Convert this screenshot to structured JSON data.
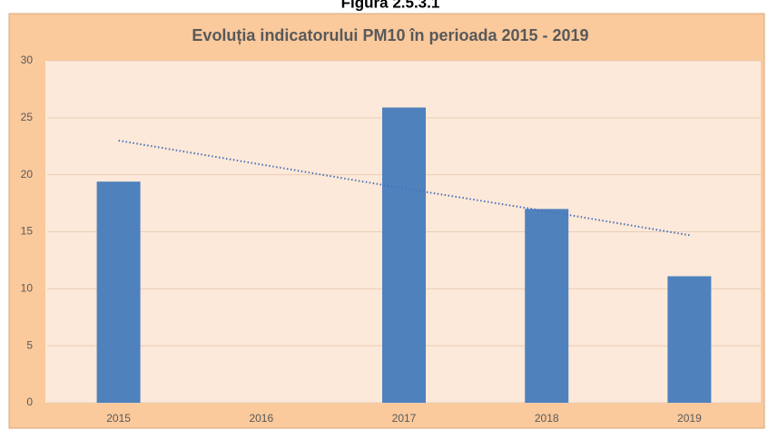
{
  "caption": "Figura 2.5.3.1",
  "chart_data": {
    "type": "bar",
    "title": "Evoluția indicatorului PM10 în perioada 2015 - 2019",
    "categories": [
      "2015",
      "2016",
      "2017",
      "2018",
      "2019"
    ],
    "values": [
      19.4,
      null,
      25.9,
      17,
      11.1
    ],
    "color": "#4f81bd",
    "trendline": {
      "values": [
        23,
        20.9,
        18.8,
        16.8,
        14.7
      ],
      "color": "#4a72b8"
    },
    "ylim": [
      0,
      30
    ],
    "yticks": [
      0,
      5,
      10,
      15,
      20,
      25,
      30
    ],
    "grid": true
  }
}
